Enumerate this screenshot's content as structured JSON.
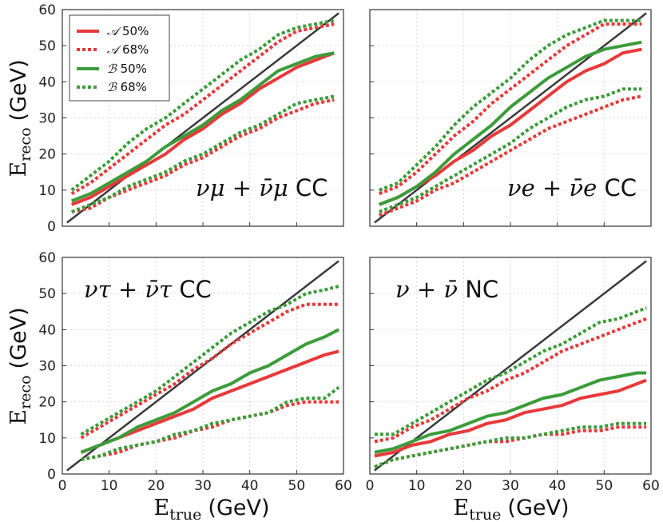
{
  "figure": {
    "xlabel_sym": "E",
    "xlabel_sub": "true",
    "xlabel_unit": "(GeV)",
    "ylabel_sym": "E",
    "ylabel_sub": "reco",
    "ylabel_unit": "(GeV)"
  },
  "legend": {
    "entries": [
      {
        "sym": "𝒜",
        "label": "50%",
        "color": "#e8393a",
        "style": "solid"
      },
      {
        "sym": "𝒜",
        "label": "68%",
        "color": "#e8393a",
        "style": "dotted"
      },
      {
        "sym": "ℬ",
        "label": "50%",
        "color": "#3c9c3a",
        "style": "solid"
      },
      {
        "sym": "ℬ",
        "label": "68%",
        "color": "#3c9c3a",
        "style": "dotted"
      }
    ]
  },
  "colors": {
    "A": "#e8393a",
    "B": "#3c9c3a",
    "diag": "#3a3a3a",
    "grid": "#d9d9d9"
  },
  "chart_data": [
    {
      "type": "line",
      "annotation": "ν_μ + ν̄_μ CC",
      "ann_math": "νμ + ν̄μ",
      "ann_text": "CC",
      "xlim": [
        0,
        60
      ],
      "ylim": [
        0,
        60
      ],
      "xticks": [
        0,
        10,
        20,
        30,
        40,
        50,
        60
      ],
      "yticks": [
        0,
        10,
        20,
        30,
        40,
        50,
        60
      ],
      "x": [
        2,
        6,
        10,
        14,
        18,
        22,
        26,
        30,
        34,
        38,
        42,
        46,
        50,
        54,
        58
      ],
      "series": [
        {
          "name": "A 50%",
          "values": [
            6,
            8,
            11,
            14,
            17,
            20,
            24,
            27,
            31,
            34,
            38,
            41,
            44,
            46,
            48
          ]
        },
        {
          "name": "A 68% upper",
          "values": [
            9,
            12,
            16,
            20,
            24,
            28,
            31,
            35,
            39,
            43,
            47,
            51,
            54,
            55,
            56
          ]
        },
        {
          "name": "A 68% lower",
          "values": [
            4,
            5,
            8,
            10,
            12,
            14,
            17,
            19,
            22,
            25,
            27,
            30,
            32,
            34,
            35
          ]
        },
        {
          "name": "B 50%",
          "values": [
            7,
            9,
            12,
            15,
            18,
            22,
            25,
            28,
            32,
            35,
            39,
            43,
            45,
            47,
            48
          ]
        },
        {
          "name": "B 68% upper",
          "values": [
            10,
            14,
            18,
            23,
            27,
            30,
            34,
            38,
            42,
            46,
            49,
            53,
            55,
            56,
            57
          ]
        },
        {
          "name": "B 68% lower",
          "values": [
            4,
            6,
            8,
            11,
            13,
            15,
            18,
            20,
            23,
            26,
            28,
            31,
            34,
            35,
            36
          ]
        }
      ]
    },
    {
      "type": "line",
      "annotation": "ν_e + ν̄_e CC",
      "ann_math": "νe + ν̄e",
      "ann_text": "CC",
      "xlim": [
        0,
        60
      ],
      "ylim": [
        0,
        60
      ],
      "xticks": [
        0,
        10,
        20,
        30,
        40,
        50,
        60
      ],
      "yticks": [
        0,
        10,
        20,
        30,
        40,
        50,
        60
      ],
      "x": [
        2,
        6,
        10,
        14,
        18,
        22,
        26,
        30,
        34,
        38,
        42,
        46,
        50,
        54,
        58
      ],
      "series": [
        {
          "name": "A 50%",
          "values": [
            6,
            8,
            11,
            14,
            18,
            21,
            25,
            28,
            32,
            36,
            40,
            43,
            45,
            48,
            49
          ]
        },
        {
          "name": "A 68% upper",
          "values": [
            9,
            11,
            15,
            20,
            25,
            29,
            34,
            38,
            42,
            46,
            50,
            53,
            56,
            56,
            56
          ]
        },
        {
          "name": "A 68% lower",
          "values": [
            3,
            5,
            7,
            10,
            12,
            15,
            18,
            21,
            24,
            27,
            29,
            31,
            33,
            35,
            36
          ]
        },
        {
          "name": "B 50%",
          "values": [
            6,
            8,
            11,
            15,
            20,
            24,
            28,
            33,
            37,
            41,
            44,
            47,
            49,
            50,
            51
          ]
        },
        {
          "name": "B 68% upper",
          "values": [
            10,
            12,
            17,
            22,
            28,
            33,
            37,
            41,
            46,
            50,
            53,
            55,
            57,
            57,
            57
          ]
        },
        {
          "name": "B 68% lower",
          "values": [
            4,
            6,
            8,
            11,
            14,
            17,
            20,
            23,
            27,
            30,
            33,
            35,
            36,
            38,
            38
          ]
        }
      ]
    },
    {
      "type": "line",
      "annotation": "ν_τ + ν̄_τ CC",
      "ann_math": "ντ + ν̄τ",
      "ann_text": "CC",
      "xlim": [
        0,
        60
      ],
      "ylim": [
        0,
        60
      ],
      "xticks": [
        0,
        10,
        20,
        30,
        40,
        50,
        60
      ],
      "yticks": [
        0,
        10,
        20,
        30,
        40,
        50,
        60
      ],
      "x": [
        4,
        8,
        12,
        16,
        20,
        24,
        28,
        32,
        36,
        40,
        44,
        48,
        52,
        56,
        59
      ],
      "series": [
        {
          "name": "A 50%",
          "values": [
            6,
            8,
            10,
            12,
            14,
            16,
            18,
            21,
            23,
            25,
            27,
            29,
            31,
            33,
            34
          ]
        },
        {
          "name": "A 68% upper",
          "values": [
            10,
            13,
            16,
            19,
            22,
            25,
            29,
            32,
            36,
            39,
            42,
            45,
            47,
            47,
            47
          ]
        },
        {
          "name": "A 68% lower",
          "values": [
            4,
            5,
            6,
            8,
            9,
            10,
            12,
            13,
            15,
            16,
            17,
            19,
            20,
            20,
            20
          ]
        },
        {
          "name": "B 50%",
          "values": [
            6,
            8,
            10,
            13,
            15,
            17,
            20,
            23,
            25,
            28,
            30,
            33,
            36,
            38,
            40
          ]
        },
        {
          "name": "B 68% upper",
          "values": [
            11,
            14,
            17,
            20,
            23,
            27,
            31,
            35,
            39,
            42,
            45,
            47,
            50,
            51,
            52
          ]
        },
        {
          "name": "B 68% lower",
          "values": [
            4,
            5,
            7,
            8,
            9,
            11,
            12,
            14,
            15,
            16,
            17,
            20,
            21,
            21,
            24
          ]
        }
      ]
    },
    {
      "type": "line",
      "annotation": "ν + ν̄ NC",
      "ann_math": "ν + ν̄",
      "ann_text": "NC",
      "xlim": [
        0,
        60
      ],
      "ylim": [
        0,
        60
      ],
      "xticks": [
        0,
        10,
        20,
        30,
        40,
        50,
        60
      ],
      "yticks": [
        0,
        10,
        20,
        30,
        40,
        50,
        60
      ],
      "x": [
        1,
        5,
        9,
        13,
        17,
        21,
        25,
        29,
        33,
        37,
        41,
        45,
        49,
        53,
        57,
        59
      ],
      "series": [
        {
          "name": "A 50%",
          "values": [
            5,
            6,
            8,
            9,
            11,
            12,
            14,
            15,
            17,
            18,
            19,
            21,
            22,
            23,
            25,
            26
          ]
        },
        {
          "name": "A 68% upper",
          "values": [
            9,
            10,
            13,
            15,
            18,
            21,
            23,
            26,
            28,
            31,
            34,
            36,
            38,
            40,
            42,
            43
          ]
        },
        {
          "name": "A 68% lower",
          "values": [
            2,
            4,
            5,
            6,
            7,
            8,
            9,
            9,
            10,
            11,
            11,
            12,
            12,
            13,
            13,
            13
          ]
        },
        {
          "name": "B 50%",
          "values": [
            6,
            7,
            9,
            11,
            12,
            14,
            16,
            17,
            19,
            21,
            22,
            24,
            26,
            27,
            28,
            28
          ]
        },
        {
          "name": "B 68% upper",
          "values": [
            11,
            11,
            14,
            17,
            20,
            23,
            26,
            28,
            31,
            34,
            36,
            39,
            42,
            43,
            45,
            46
          ]
        },
        {
          "name": "B 68% lower",
          "values": [
            2,
            4,
            5,
            6,
            7,
            8,
            9,
            10,
            10,
            11,
            12,
            13,
            13,
            14,
            14,
            14
          ]
        }
      ]
    }
  ]
}
